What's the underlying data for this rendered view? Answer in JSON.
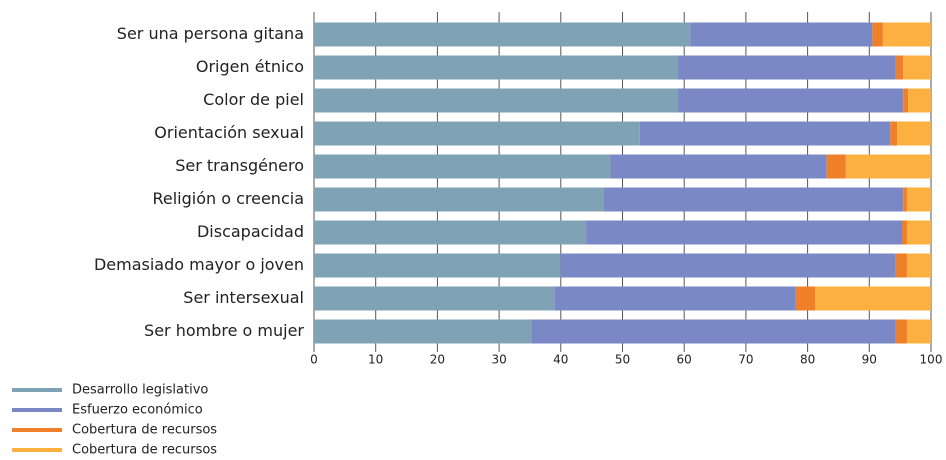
{
  "chart_data": {
    "type": "stacked_barh",
    "categories": [
      "Ser una persona gitana",
      "Origen étnico",
      "Color de piel",
      "Orientación sexual",
      "Ser transgénero",
      "Religión o creencia",
      "Discapacidad",
      "Demasiado mayor o joven",
      "Ser intersexual",
      "Ser hombre o mujer"
    ],
    "series": [
      {
        "name": "Desarrollo legislativo",
        "color": "#7fa3b5",
        "values": [
          61,
          59,
          59,
          52.8,
          48,
          47,
          44.1,
          40,
          39,
          35.2
        ]
      },
      {
        "name": "Esfuerzo económico",
        "color": "#7a88c6",
        "values": [
          29.5,
          35.3,
          36.5,
          40.6,
          35.1,
          48.5,
          51.2,
          54.3,
          39.1,
          59.1
        ]
      },
      {
        "name": "Cobertura de recursos",
        "color": "#f07f2a",
        "values": [
          1.7,
          1.2,
          0.8,
          1.1,
          3.1,
          0.6,
          0.8,
          1.8,
          3.1,
          1.8
        ]
      },
      {
        "name": "Cobertura de recursos",
        "color": "#fbb040",
        "values": [
          7.8,
          4.5,
          3.7,
          5.5,
          13.8,
          3.9,
          3.9,
          3.9,
          18.8,
          3.9
        ]
      }
    ],
    "xlim": [
      0,
      100
    ],
    "xticks": [
      0,
      10,
      20,
      30,
      40,
      50,
      60,
      70,
      80,
      90,
      100
    ],
    "grid": true
  }
}
